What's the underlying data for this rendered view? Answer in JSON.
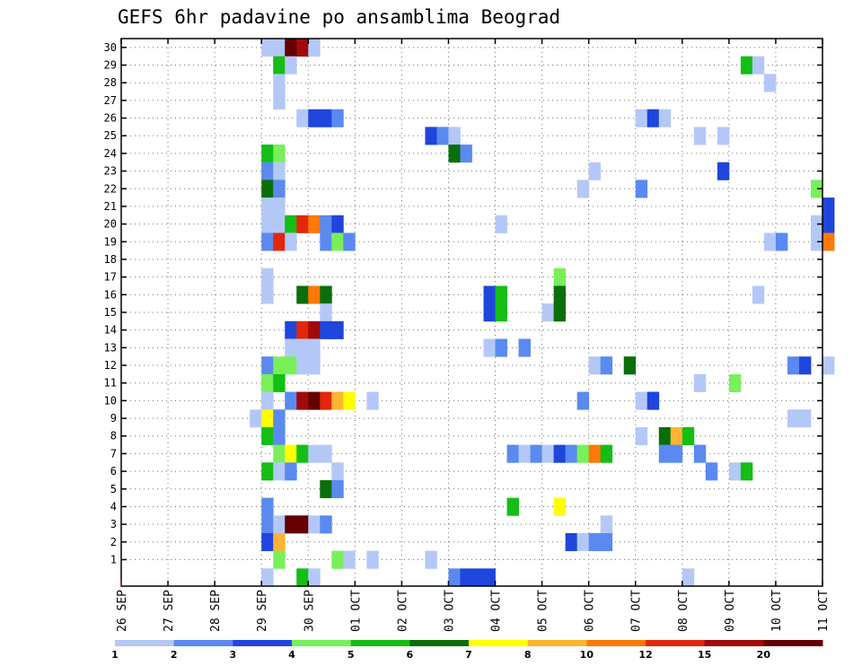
{
  "chart_data": {
    "type": "heatmap",
    "title": "GEFS 6hr padavine po ansamblima Beograd",
    "y_categories": [
      "1",
      "2",
      "3",
      "4",
      "5",
      "6",
      "7",
      "8",
      "9",
      "10",
      "11",
      "12",
      "13",
      "14",
      "15",
      "16",
      "17",
      "18",
      "19",
      "20",
      "21",
      "22",
      "23",
      "24",
      "25",
      "26",
      "27",
      "28",
      "29",
      "30"
    ],
    "x_tick_labels": [
      "26 SEP",
      "27 SEP",
      "28 SEP",
      "29 SEP",
      "30 SEP",
      "01 OCT",
      "02 OCT",
      "03 OCT",
      "04 OCT",
      "05 OCT",
      "06 OCT",
      "07 OCT",
      "08 OCT",
      "09 OCT",
      "10 OCT",
      "11 OCT"
    ],
    "x_range": [
      "26 SEP 00Z",
      "11 OCT 00Z"
    ],
    "x_step": "6hr",
    "grid": true,
    "legend": {
      "placement": "bottom",
      "labels": [
        "1",
        "2",
        "3",
        "4",
        "5",
        "6",
        "7",
        "8",
        "10",
        "12",
        "15",
        "20"
      ],
      "colors": [
        "#b4c8f8",
        "#5a8af0",
        "#1e46dc",
        "#78f05a",
        "#14be14",
        "#0a6e0a",
        "#ffff00",
        "#ffb432",
        "#ff780a",
        "#e1280a",
        "#a00a0a",
        "#640000"
      ]
    },
    "cells": [
      {
        "member": 30,
        "steps": [
          [
            12,
            1
          ],
          [
            13,
            1
          ],
          [
            14,
            12
          ],
          [
            15,
            11
          ],
          [
            16,
            1
          ]
        ]
      },
      {
        "member": 29,
        "steps": [
          [
            13,
            5
          ],
          [
            14,
            1
          ],
          [
            53,
            5
          ],
          [
            54,
            1
          ]
        ]
      },
      {
        "member": 28,
        "steps": [
          [
            13,
            1
          ],
          [
            55,
            1
          ]
        ]
      },
      {
        "member": 27,
        "steps": [
          [
            13,
            1
          ]
        ]
      },
      {
        "member": 26,
        "steps": [
          [
            15,
            1
          ],
          [
            16,
            3
          ],
          [
            17,
            3
          ],
          [
            18,
            2
          ],
          [
            44,
            1
          ],
          [
            45,
            3
          ],
          [
            46,
            1
          ]
        ]
      },
      {
        "member": 25,
        "steps": [
          [
            26,
            3
          ],
          [
            27,
            2
          ],
          [
            28,
            1
          ],
          [
            49,
            1
          ],
          [
            51,
            1
          ]
        ]
      },
      {
        "member": 24,
        "steps": [
          [
            12,
            5
          ],
          [
            13,
            4
          ],
          [
            28,
            6
          ],
          [
            29,
            2
          ]
        ]
      },
      {
        "member": 23,
        "steps": [
          [
            12,
            2
          ],
          [
            13,
            1
          ],
          [
            40,
            1
          ],
          [
            51,
            3
          ]
        ]
      },
      {
        "member": 22,
        "steps": [
          [
            12,
            6
          ],
          [
            13,
            2
          ],
          [
            39,
            1
          ],
          [
            44,
            2
          ],
          [
            59,
            4
          ]
        ]
      },
      {
        "member": 21,
        "steps": [
          [
            12,
            1
          ],
          [
            13,
            1
          ],
          [
            60,
            3
          ]
        ]
      },
      {
        "member": 20,
        "steps": [
          [
            12,
            1
          ],
          [
            13,
            1
          ],
          [
            14,
            5
          ],
          [
            15,
            10
          ],
          [
            16,
            9
          ],
          [
            17,
            2
          ],
          [
            18,
            3
          ],
          [
            32,
            1
          ],
          [
            59,
            1
          ],
          [
            60,
            3
          ]
        ]
      },
      {
        "member": 19,
        "steps": [
          [
            12,
            2
          ],
          [
            13,
            10
          ],
          [
            14,
            1
          ],
          [
            17,
            2
          ],
          [
            18,
            4
          ],
          [
            19,
            2
          ],
          [
            55,
            1
          ],
          [
            56,
            2
          ],
          [
            59,
            1
          ],
          [
            60,
            9
          ]
        ]
      },
      {
        "member": 17,
        "steps": [
          [
            12,
            1
          ],
          [
            37,
            4
          ]
        ]
      },
      {
        "member": 16,
        "steps": [
          [
            12,
            1
          ],
          [
            15,
            6
          ],
          [
            16,
            9
          ],
          [
            17,
            6
          ],
          [
            31,
            3
          ],
          [
            32,
            5
          ],
          [
            37,
            6
          ],
          [
            54,
            1
          ]
        ]
      },
      {
        "member": 15,
        "steps": [
          [
            17,
            1
          ],
          [
            31,
            3
          ],
          [
            32,
            5
          ],
          [
            36,
            1
          ],
          [
            37,
            6
          ]
        ]
      },
      {
        "member": 14,
        "steps": [
          [
            14,
            3
          ],
          [
            15,
            10
          ],
          [
            16,
            11
          ],
          [
            17,
            3
          ],
          [
            18,
            3
          ]
        ]
      },
      {
        "member": 13,
        "steps": [
          [
            14,
            1
          ],
          [
            15,
            1
          ],
          [
            16,
            1
          ],
          [
            31,
            1
          ],
          [
            32,
            2
          ],
          [
            34,
            2
          ]
        ]
      },
      {
        "member": 12,
        "steps": [
          [
            12,
            2
          ],
          [
            13,
            4
          ],
          [
            14,
            4
          ],
          [
            15,
            1
          ],
          [
            16,
            1
          ],
          [
            40,
            1
          ],
          [
            41,
            2
          ],
          [
            43,
            6
          ],
          [
            57,
            2
          ],
          [
            58,
            3
          ],
          [
            60,
            1
          ]
        ]
      },
      {
        "member": 11,
        "steps": [
          [
            12,
            4
          ],
          [
            13,
            5
          ],
          [
            49,
            1
          ],
          [
            52,
            4
          ]
        ]
      },
      {
        "member": 10,
        "steps": [
          [
            12,
            1
          ],
          [
            14,
            2
          ],
          [
            15,
            11
          ],
          [
            16,
            12
          ],
          [
            17,
            10
          ],
          [
            18,
            8
          ],
          [
            19,
            7
          ],
          [
            21,
            1
          ],
          [
            39,
            2
          ],
          [
            44,
            1
          ],
          [
            45,
            3
          ]
        ]
      },
      {
        "member": 9,
        "steps": [
          [
            11,
            1
          ],
          [
            12,
            7
          ],
          [
            13,
            2
          ],
          [
            57,
            1
          ],
          [
            58,
            1
          ]
        ]
      },
      {
        "member": 8,
        "steps": [
          [
            12,
            5
          ],
          [
            13,
            2
          ],
          [
            44,
            1
          ],
          [
            46,
            6
          ],
          [
            47,
            8
          ],
          [
            48,
            5
          ]
        ]
      },
      {
        "member": 7,
        "steps": [
          [
            13,
            4
          ],
          [
            14,
            7
          ],
          [
            15,
            5
          ],
          [
            16,
            1
          ],
          [
            17,
            1
          ],
          [
            33,
            2
          ],
          [
            34,
            1
          ],
          [
            35,
            2
          ],
          [
            36,
            1
          ],
          [
            37,
            3
          ],
          [
            38,
            2
          ],
          [
            39,
            4
          ],
          [
            40,
            9
          ],
          [
            41,
            5
          ],
          [
            46,
            2
          ],
          [
            47,
            2
          ],
          [
            49,
            2
          ]
        ]
      },
      {
        "member": 6,
        "steps": [
          [
            12,
            5
          ],
          [
            13,
            1
          ],
          [
            14,
            2
          ],
          [
            18,
            1
          ],
          [
            50,
            2
          ],
          [
            52,
            1
          ],
          [
            53,
            5
          ]
        ]
      },
      {
        "member": 5,
        "steps": [
          [
            17,
            6
          ],
          [
            18,
            2
          ]
        ]
      },
      {
        "member": 4,
        "steps": [
          [
            12,
            2
          ],
          [
            33,
            5
          ],
          [
            37,
            7
          ]
        ]
      },
      {
        "member": 3,
        "steps": [
          [
            12,
            2
          ],
          [
            13,
            1
          ],
          [
            14,
            12
          ],
          [
            15,
            12
          ],
          [
            16,
            1
          ],
          [
            17,
            2
          ],
          [
            41,
            1
          ]
        ]
      },
      {
        "member": 2,
        "steps": [
          [
            12,
            3
          ],
          [
            13,
            8
          ],
          [
            38,
            3
          ],
          [
            39,
            1
          ],
          [
            40,
            2
          ],
          [
            41,
            2
          ]
        ]
      },
      {
        "member": 1,
        "steps": [
          [
            13,
            4
          ],
          [
            18,
            4
          ],
          [
            19,
            1
          ],
          [
            21,
            1
          ],
          [
            26,
            1
          ]
        ]
      },
      {
        "member": 0,
        "steps": [
          [
            12,
            1
          ],
          [
            15,
            5
          ],
          [
            16,
            1
          ],
          [
            28,
            2
          ],
          [
            29,
            3
          ],
          [
            30,
            3
          ],
          [
            31,
            3
          ],
          [
            48,
            1
          ]
        ]
      }
    ]
  }
}
